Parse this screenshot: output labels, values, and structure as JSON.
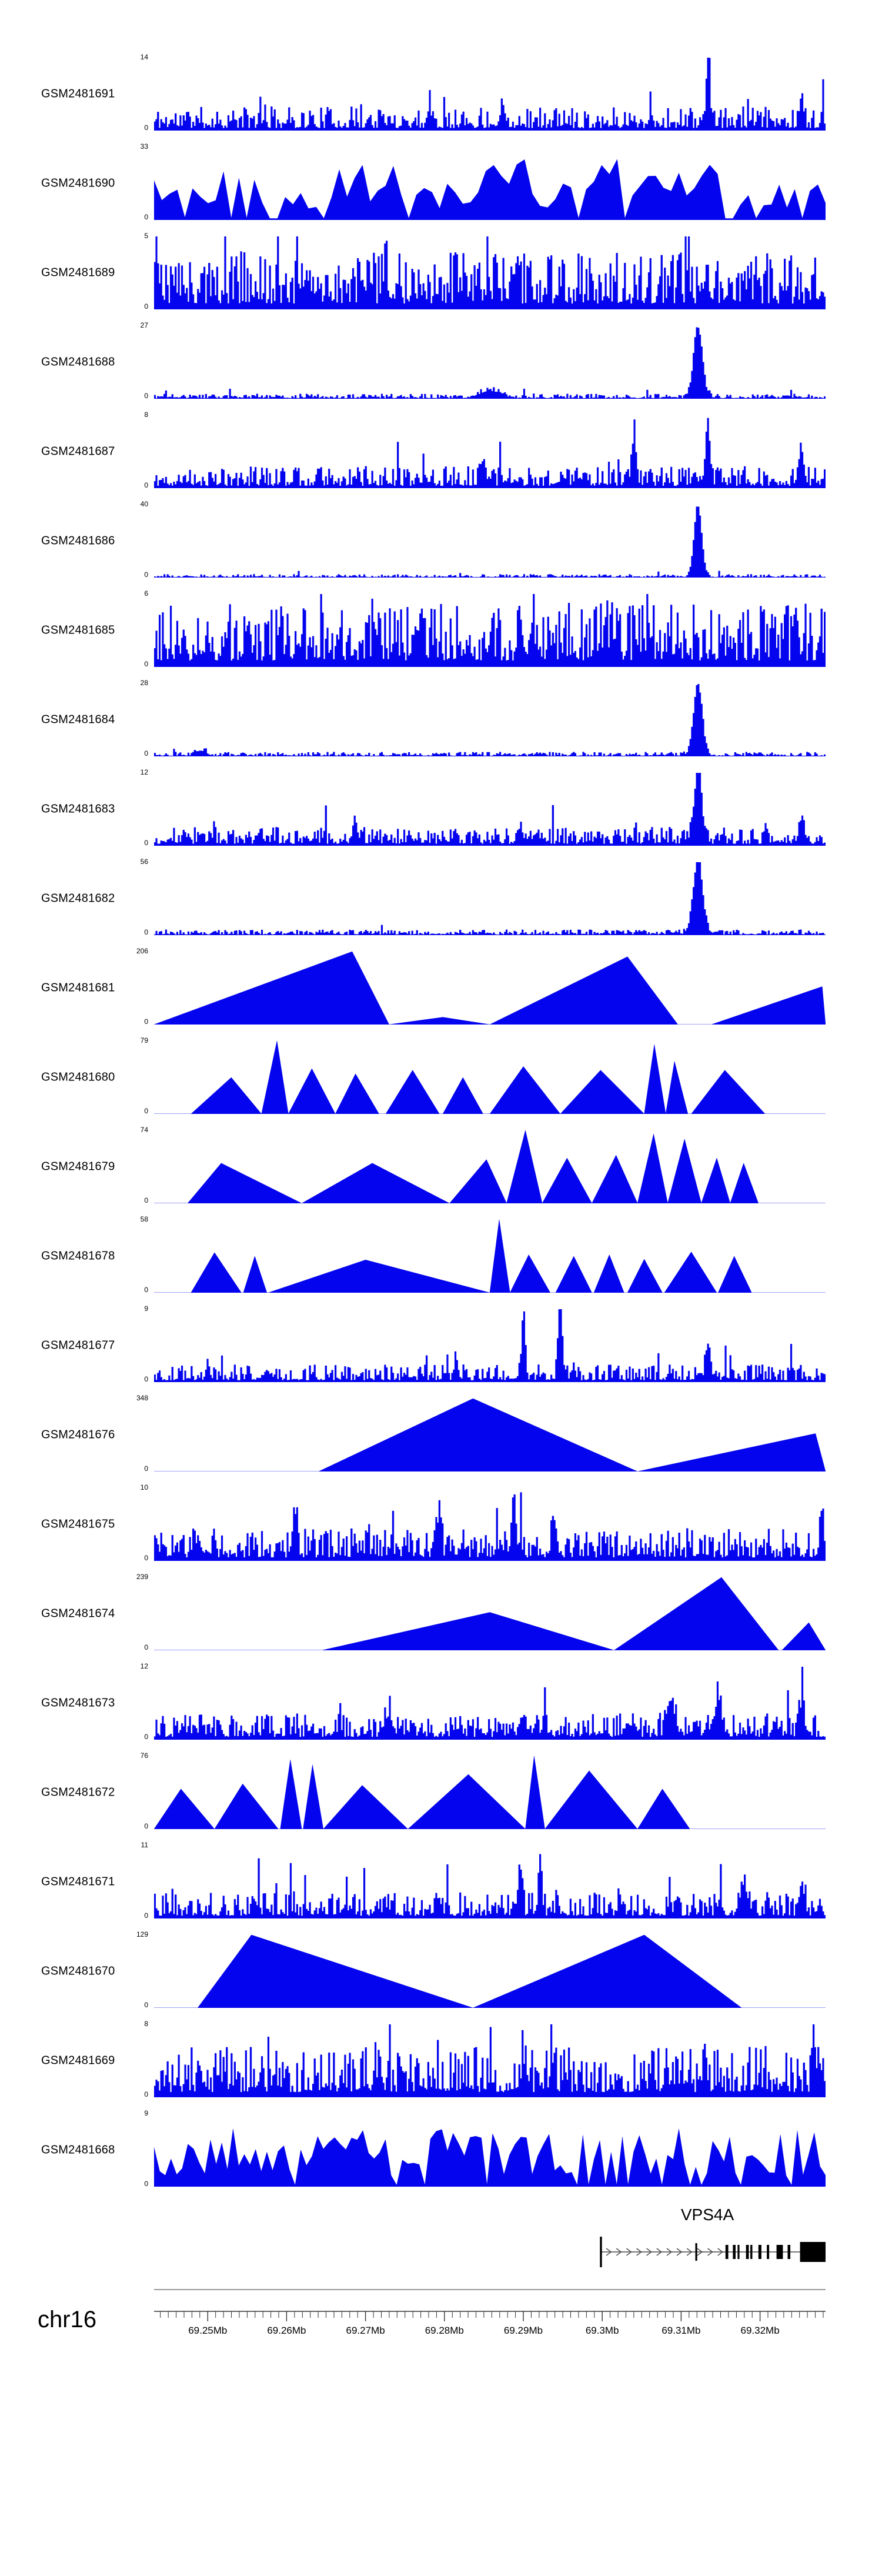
{
  "chart_data": {
    "type": "area",
    "description": "Genome browser coverage tracks (24 GEO samples) over chr16 around the VPS4A locus",
    "signal_color": "#0404EE",
    "region": {
      "chromosome": "chr16",
      "start_mb": 69.2432,
      "end_mb": 69.3283
    },
    "axis": {
      "minor_tick_interval_mb": 0.001,
      "major_ticks": [
        {
          "mb": 69.25,
          "label": "69.25Mb"
        },
        {
          "mb": 69.26,
          "label": "69.26Mb"
        },
        {
          "mb": 69.27,
          "label": "69.27Mb"
        },
        {
          "mb": 69.28,
          "label": "69.28Mb"
        },
        {
          "mb": 69.29,
          "label": "69.29Mb"
        },
        {
          "mb": 69.3,
          "label": "69.3Mb"
        },
        {
          "mb": 69.31,
          "label": "69.31Mb"
        },
        {
          "mb": 69.32,
          "label": "69.32Mb"
        }
      ]
    },
    "gene_track": {
      "gene_name": "VPS4A",
      "label_center_frac": 0.824,
      "line_start_frac": 0.664,
      "line_end_frac": 1.0,
      "strand": "right",
      "arrow_fracs": [
        0.677,
        0.692,
        0.707,
        0.722,
        0.737,
        0.752,
        0.767,
        0.782,
        0.797,
        0.8125,
        0.828,
        0.843
      ],
      "exons": [
        {
          "x": 0.664,
          "w": 0.003,
          "h": 52
        },
        {
          "x": 0.806,
          "w": 0.0028,
          "h": 30
        },
        {
          "x": 0.851,
          "w": 0.0042,
          "h": 24
        },
        {
          "x": 0.862,
          "w": 0.004,
          "h": 24
        },
        {
          "x": 0.869,
          "w": 0.0028,
          "h": 24
        },
        {
          "x": 0.8815,
          "w": 0.0042,
          "h": 24
        },
        {
          "x": 0.888,
          "w": 0.003,
          "h": 24
        },
        {
          "x": 0.9,
          "w": 0.0045,
          "h": 24
        },
        {
          "x": 0.9125,
          "w": 0.0035,
          "h": 24
        },
        {
          "x": 0.927,
          "w": 0.0095,
          "h": 24
        },
        {
          "x": 0.9435,
          "w": 0.004,
          "h": 24
        },
        {
          "x": 0.962,
          "w": 0.038,
          "h": 34
        }
      ]
    },
    "tracks": [
      {
        "label": "GSM2481691",
        "ymin": 0,
        "ymax": 14,
        "style": "spiky",
        "seed": 11,
        "base": 0.22,
        "peaks": [
          {
            "p": 0.825,
            "h": 0.95,
            "w": 0.004
          },
          {
            "p": 0.52,
            "h": 0.3,
            "w": 0.004
          },
          {
            "p": 0.965,
            "h": 0.28,
            "w": 0.004
          },
          {
            "p": 0.41,
            "h": 0.22,
            "w": 0.004
          }
        ]
      },
      {
        "label": "GSM2481690",
        "ymin": 0,
        "ymax": 33,
        "style": "ridge",
        "seed": 22,
        "base": 0.52,
        "n": 88,
        "gap": 0.12,
        "peaks": [
          {
            "p": 0.275,
            "h": 0.4,
            "w": 0.009
          },
          {
            "p": 0.49,
            "h": 0.45,
            "w": 0.007
          },
          {
            "p": 0.06,
            "h": 0.25,
            "w": 0.008
          }
        ]
      },
      {
        "label": "GSM2481689",
        "ymin": 0,
        "ymax": 5,
        "style": "spiky",
        "seed": 33,
        "base": 0.52,
        "peaks": [
          {
            "p": 0.004,
            "h": 0.45,
            "w": 0.005
          },
          {
            "p": 0.225,
            "h": 0.3,
            "w": 0.004
          },
          {
            "p": 0.345,
            "h": 0.25,
            "w": 0.004
          }
        ]
      },
      {
        "label": "GSM2481688",
        "ymin": 0,
        "ymax": 27,
        "style": "spiky",
        "seed": 44,
        "base": 0.045,
        "peaks": [
          {
            "p": 0.81,
            "h": 0.97,
            "w": 0.009
          },
          {
            "p": 0.5,
            "h": 0.1,
            "w": 0.02
          }
        ]
      },
      {
        "label": "GSM2481687",
        "ymin": 0,
        "ymax": 8,
        "style": "spiky",
        "seed": 55,
        "base": 0.2,
        "peaks": [
          {
            "p": 0.715,
            "h": 0.72,
            "w": 0.004
          },
          {
            "p": 0.825,
            "h": 0.72,
            "w": 0.005
          },
          {
            "p": 0.49,
            "h": 0.32,
            "w": 0.004
          },
          {
            "p": 0.965,
            "h": 0.4,
            "w": 0.005
          },
          {
            "p": 0.245,
            "h": 0.25,
            "w": 0.004
          }
        ]
      },
      {
        "label": "GSM2481686",
        "ymin": 0,
        "ymax": 40,
        "style": "spiky",
        "seed": 66,
        "base": 0.03,
        "peaks": [
          {
            "p": 0.81,
            "h": 0.97,
            "w": 0.008
          }
        ]
      },
      {
        "label": "GSM2481685",
        "ymin": 0,
        "ymax": 6,
        "style": "spiky",
        "seed": 77,
        "base": 0.58,
        "peaks": [
          {
            "p": 0.14,
            "h": 0.25,
            "w": 0.005
          },
          {
            "p": 0.33,
            "h": 0.25,
            "w": 0.005
          },
          {
            "p": 0.69,
            "h": 0.25,
            "w": 0.005
          }
        ]
      },
      {
        "label": "GSM2481684",
        "ymin": 0,
        "ymax": 28,
        "style": "spiky",
        "seed": 88,
        "base": 0.04,
        "peaks": [
          {
            "p": 0.81,
            "h": 0.97,
            "w": 0.009
          },
          {
            "p": 0.07,
            "h": 0.07,
            "w": 0.01
          }
        ]
      },
      {
        "label": "GSM2481683",
        "ymin": 0,
        "ymax": 12,
        "style": "spiky",
        "seed": 99,
        "base": 0.17,
        "peaks": [
          {
            "p": 0.81,
            "h": 0.97,
            "w": 0.008
          },
          {
            "p": 0.3,
            "h": 0.22,
            "w": 0.006
          },
          {
            "p": 0.545,
            "h": 0.2,
            "w": 0.006
          },
          {
            "p": 0.965,
            "h": 0.3,
            "w": 0.005
          }
        ]
      },
      {
        "label": "GSM2481682",
        "ymin": 0,
        "ymax": 56,
        "style": "spiky",
        "seed": 110,
        "base": 0.05,
        "peaks": [
          {
            "p": 0.81,
            "h": 0.97,
            "w": 0.01
          }
        ]
      },
      {
        "label": "GSM2481681",
        "ymin": 0,
        "ymax": 206,
        "style": "shapes",
        "seed": 121,
        "shapes": [
          {
            "x0": 0.0,
            "xp": 0.295,
            "x1": 0.35,
            "h": 1.0
          },
          {
            "x0": 0.35,
            "xp": 0.43,
            "x1": 0.5,
            "h": 0.1
          },
          {
            "x0": 0.5,
            "xp": 0.705,
            "x1": 0.78,
            "h": 0.93
          },
          {
            "x0": 0.83,
            "xp": 0.995,
            "x1": 1.0,
            "h": 0.52
          }
        ]
      },
      {
        "label": "GSM2481680",
        "ymin": 0,
        "ymax": 79,
        "style": "shapes",
        "seed": 132,
        "shapes": [
          {
            "x0": 0.055,
            "xp": 0.115,
            "x1": 0.16,
            "h": 0.5
          },
          {
            "x0": 0.16,
            "xp": 0.183,
            "x1": 0.2,
            "h": 1.0
          },
          {
            "x0": 0.2,
            "xp": 0.235,
            "x1": 0.27,
            "h": 0.62
          },
          {
            "x0": 0.27,
            "xp": 0.3,
            "x1": 0.335,
            "h": 0.55
          },
          {
            "x0": 0.345,
            "xp": 0.385,
            "x1": 0.425,
            "h": 0.6
          },
          {
            "x0": 0.43,
            "xp": 0.46,
            "x1": 0.49,
            "h": 0.5
          },
          {
            "x0": 0.5,
            "xp": 0.55,
            "x1": 0.605,
            "h": 0.65
          },
          {
            "x0": 0.605,
            "xp": 0.665,
            "x1": 0.73,
            "h": 0.6
          },
          {
            "x0": 0.73,
            "xp": 0.745,
            "x1": 0.762,
            "h": 0.95
          },
          {
            "x0": 0.762,
            "xp": 0.775,
            "x1": 0.795,
            "h": 0.72
          },
          {
            "x0": 0.8,
            "xp": 0.85,
            "x1": 0.91,
            "h": 0.6
          }
        ]
      },
      {
        "label": "GSM2481679",
        "ymin": 0,
        "ymax": 74,
        "style": "shapes",
        "seed": 143,
        "shapes": [
          {
            "x0": 0.05,
            "xp": 0.1,
            "x1": 0.22,
            "h": 0.55
          },
          {
            "x0": 0.22,
            "xp": 0.325,
            "x1": 0.44,
            "h": 0.55
          },
          {
            "x0": 0.44,
            "xp": 0.495,
            "x1": 0.525,
            "h": 0.6
          },
          {
            "x0": 0.525,
            "xp": 0.553,
            "x1": 0.578,
            "h": 1.0
          },
          {
            "x0": 0.578,
            "xp": 0.615,
            "x1": 0.652,
            "h": 0.62
          },
          {
            "x0": 0.652,
            "xp": 0.688,
            "x1": 0.72,
            "h": 0.66
          },
          {
            "x0": 0.72,
            "xp": 0.744,
            "x1": 0.765,
            "h": 0.95
          },
          {
            "x0": 0.765,
            "xp": 0.79,
            "x1": 0.815,
            "h": 0.88
          },
          {
            "x0": 0.815,
            "xp": 0.838,
            "x1": 0.858,
            "h": 0.62
          },
          {
            "x0": 0.858,
            "xp": 0.878,
            "x1": 0.9,
            "h": 0.55
          }
        ]
      },
      {
        "label": "GSM2481678",
        "ymin": 0,
        "ymax": 58,
        "style": "shapes",
        "seed": 154,
        "shapes": [
          {
            "x0": 0.055,
            "xp": 0.09,
            "x1": 0.13,
            "h": 0.55
          },
          {
            "x0": 0.133,
            "xp": 0.15,
            "x1": 0.168,
            "h": 0.5
          },
          {
            "x0": 0.17,
            "xp": 0.315,
            "x1": 0.5,
            "h": 0.45
          },
          {
            "x0": 0.5,
            "xp": 0.514,
            "x1": 0.53,
            "h": 1.0
          },
          {
            "x0": 0.53,
            "xp": 0.558,
            "x1": 0.59,
            "h": 0.52
          },
          {
            "x0": 0.598,
            "xp": 0.625,
            "x1": 0.652,
            "h": 0.5
          },
          {
            "x0": 0.655,
            "xp": 0.678,
            "x1": 0.7,
            "h": 0.52
          },
          {
            "x0": 0.705,
            "xp": 0.73,
            "x1": 0.757,
            "h": 0.46
          },
          {
            "x0": 0.76,
            "xp": 0.8,
            "x1": 0.838,
            "h": 0.56
          },
          {
            "x0": 0.84,
            "xp": 0.864,
            "x1": 0.89,
            "h": 0.5
          }
        ]
      },
      {
        "label": "GSM2481677",
        "ymin": 0,
        "ymax": 9,
        "style": "spiky",
        "seed": 165,
        "base": 0.16,
        "peaks": [
          {
            "p": 0.55,
            "h": 0.8,
            "w": 0.004
          },
          {
            "p": 0.605,
            "h": 0.95,
            "w": 0.004
          },
          {
            "p": 0.825,
            "h": 0.5,
            "w": 0.005
          },
          {
            "p": 0.08,
            "h": 0.22,
            "w": 0.004
          },
          {
            "p": 0.45,
            "h": 0.3,
            "w": 0.004
          }
        ]
      },
      {
        "label": "GSM2481676",
        "ymin": 0,
        "ymax": 348,
        "style": "shapes",
        "seed": 176,
        "shapes": [
          {
            "x0": 0.245,
            "xp": 0.475,
            "x1": 0.72,
            "h": 1.0
          },
          {
            "x0": 0.72,
            "xp": 0.985,
            "x1": 1.0,
            "h": 0.52
          }
        ]
      },
      {
        "label": "GSM2481675",
        "ymin": 0,
        "ymax": 10,
        "style": "spiky",
        "seed": 187,
        "base": 0.3,
        "peaks": [
          {
            "p": 0.21,
            "h": 0.45,
            "w": 0.005
          },
          {
            "p": 0.425,
            "h": 0.65,
            "w": 0.004
          },
          {
            "p": 0.535,
            "h": 0.7,
            "w": 0.004
          },
          {
            "p": 0.595,
            "h": 0.5,
            "w": 0.004
          },
          {
            "p": 0.995,
            "h": 0.55,
            "w": 0.004
          }
        ]
      },
      {
        "label": "GSM2481674",
        "ymin": 0,
        "ymax": 239,
        "style": "shapes",
        "seed": 198,
        "shapes": [
          {
            "x0": 0.25,
            "xp": 0.5,
            "x1": 0.685,
            "h": 0.52
          },
          {
            "x0": 0.685,
            "xp": 0.845,
            "x1": 0.93,
            "h": 1.0
          },
          {
            "x0": 0.935,
            "xp": 0.975,
            "x1": 1.0,
            "h": 0.38
          }
        ]
      },
      {
        "label": "GSM2481673",
        "ymin": 0,
        "ymax": 12,
        "style": "spiky",
        "seed": 209,
        "base": 0.24,
        "peaks": [
          {
            "p": 0.77,
            "h": 0.45,
            "w": 0.008
          },
          {
            "p": 0.84,
            "h": 0.5,
            "w": 0.007
          },
          {
            "p": 0.965,
            "h": 0.45,
            "w": 0.005
          },
          {
            "p": 0.35,
            "h": 0.25,
            "w": 0.008
          },
          {
            "p": 0.55,
            "h": 0.25,
            "w": 0.006
          }
        ]
      },
      {
        "label": "GSM2481672",
        "ymin": 0,
        "ymax": 76,
        "style": "shapes",
        "seed": 220,
        "shapes": [
          {
            "x0": 0.0,
            "xp": 0.04,
            "x1": 0.09,
            "h": 0.55
          },
          {
            "x0": 0.09,
            "xp": 0.132,
            "x1": 0.185,
            "h": 0.62
          },
          {
            "x0": 0.188,
            "xp": 0.203,
            "x1": 0.22,
            "h": 0.95
          },
          {
            "x0": 0.222,
            "xp": 0.236,
            "x1": 0.252,
            "h": 0.88
          },
          {
            "x0": 0.252,
            "xp": 0.31,
            "x1": 0.378,
            "h": 0.6
          },
          {
            "x0": 0.378,
            "xp": 0.468,
            "x1": 0.553,
            "h": 0.75
          },
          {
            "x0": 0.553,
            "xp": 0.566,
            "x1": 0.582,
            "h": 1.0
          },
          {
            "x0": 0.582,
            "xp": 0.648,
            "x1": 0.72,
            "h": 0.8
          },
          {
            "x0": 0.72,
            "xp": 0.757,
            "x1": 0.798,
            "h": 0.55
          }
        ]
      },
      {
        "label": "GSM2481671",
        "ymin": 0,
        "ymax": 11,
        "style": "spiky",
        "seed": 231,
        "base": 0.24,
        "peaks": [
          {
            "p": 0.545,
            "h": 0.7,
            "w": 0.004
          },
          {
            "p": 0.575,
            "h": 0.55,
            "w": 0.004
          },
          {
            "p": 0.88,
            "h": 0.3,
            "w": 0.008
          },
          {
            "p": 0.965,
            "h": 0.35,
            "w": 0.005
          },
          {
            "p": 0.15,
            "h": 0.2,
            "w": 0.005
          }
        ]
      },
      {
        "label": "GSM2481670",
        "ymin": 0,
        "ymax": 129,
        "style": "shapes",
        "seed": 242,
        "shapes": [
          {
            "x0": 0.065,
            "xp": 0.145,
            "x1": 0.475,
            "h": 1.0
          },
          {
            "x0": 0.475,
            "xp": 0.73,
            "x1": 0.875,
            "h": 1.0
          }
        ]
      },
      {
        "label": "GSM2481669",
        "ymin": 0,
        "ymax": 8,
        "style": "spiky",
        "seed": 253,
        "base": 0.46,
        "peaks": [
          {
            "p": 0.55,
            "h": 0.4,
            "w": 0.004
          },
          {
            "p": 0.82,
            "h": 0.3,
            "w": 0.005
          },
          {
            "p": 0.33,
            "h": 0.2,
            "w": 0.005
          }
        ]
      },
      {
        "label": "GSM2481668",
        "ymin": 0,
        "ymax": 9,
        "style": "ridge",
        "seed": 264,
        "base": 0.5,
        "n": 120,
        "gap": 0.1,
        "peaks": [
          {
            "p": 0.545,
            "h": 0.45,
            "w": 0.006
          },
          {
            "p": 0.33,
            "h": 0.25,
            "w": 0.007
          }
        ]
      }
    ]
  }
}
